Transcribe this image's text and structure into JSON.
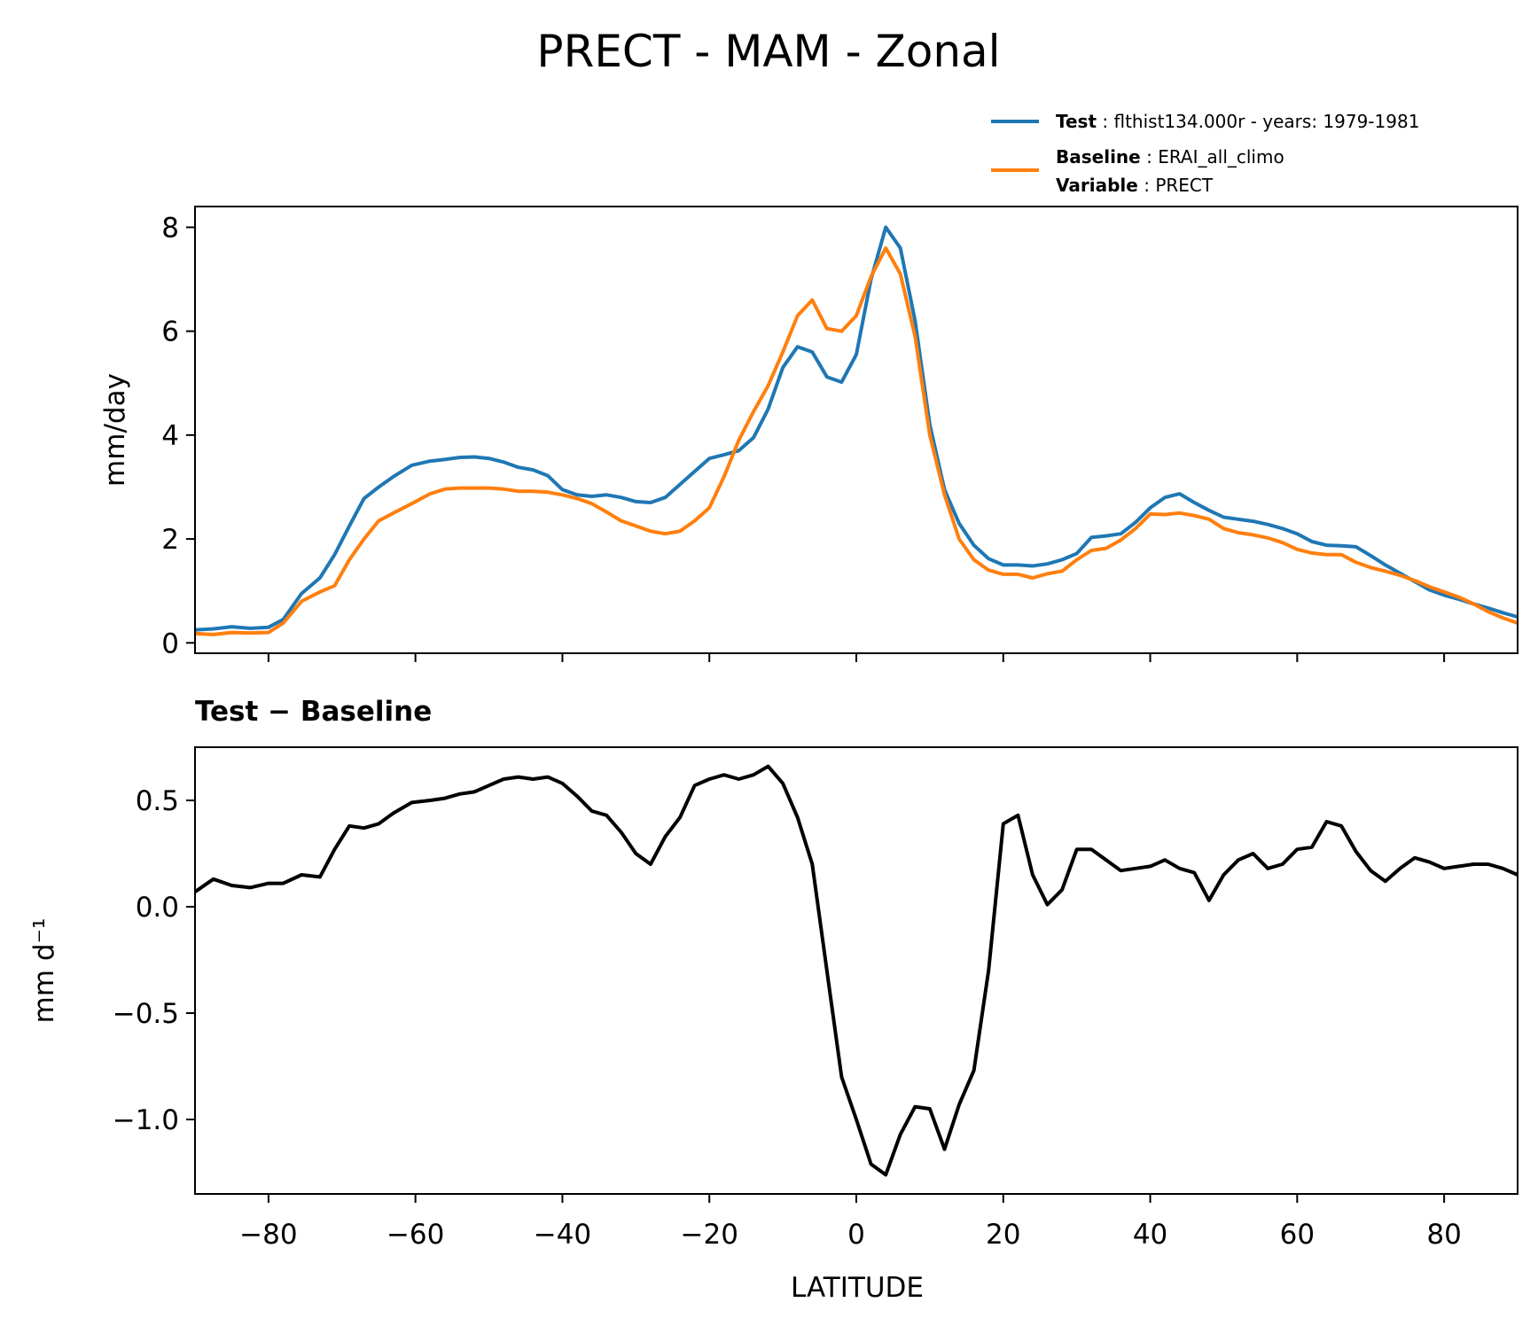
{
  "chart_data": {
    "title": "PRECT - MAM - Zonal",
    "legend": {
      "placement": "top-right",
      "entries": [
        {
          "key": "Test",
          "label": "flthist134.000r - years: 1979-1981",
          "color": "#1f77b4"
        },
        {
          "key": "Baseline",
          "label": "ERAI_all_climo",
          "color": "#ff7f0e",
          "extra_key": "Variable",
          "extra_label": "PRECT"
        }
      ]
    },
    "xlabel": "LATITUDE",
    "xlim": [
      -90,
      90
    ],
    "xticks": [
      -80,
      -60,
      -40,
      -20,
      0,
      20,
      40,
      60,
      80
    ],
    "xtick_labels": [
      "−80",
      "−60",
      "−40",
      "−20",
      "0",
      "20",
      "40",
      "60",
      "80"
    ],
    "x": [
      -90,
      -87.5,
      -85,
      -82.5,
      -80,
      -78,
      -75.5,
      -73,
      -71,
      -69,
      -67,
      -65,
      -63,
      -60.5,
      -58,
      -56,
      -54,
      -52,
      -50,
      -48,
      -46,
      -44,
      -42,
      -40,
      -38,
      -36,
      -34,
      -32,
      -30,
      -28,
      -26,
      -24,
      -22,
      -20,
      -18,
      -16,
      -14,
      -12,
      -10,
      -8,
      -6,
      -4,
      -2,
      0,
      2,
      4,
      6,
      8,
      10,
      12,
      14,
      16,
      18,
      20,
      22,
      24,
      26,
      28,
      30,
      32,
      34,
      36,
      38,
      40,
      42,
      44,
      46,
      48,
      50,
      52,
      54,
      56,
      58,
      60,
      62,
      64,
      66,
      68,
      70,
      72,
      74,
      76,
      78,
      80,
      82,
      84,
      86,
      88,
      90
    ],
    "panels": [
      {
        "type": "line",
        "ylabel": "mm/day",
        "ylim": [
          -0.2,
          8.4
        ],
        "yticks": [
          0,
          2,
          4,
          6,
          8
        ],
        "ytick_labels": [
          "0",
          "2",
          "4",
          "6",
          "8"
        ],
        "series": [
          {
            "name": "Test",
            "color": "#1f77b4",
            "values": [
              0.25,
              0.27,
              0.31,
              0.28,
              0.3,
              0.45,
              0.95,
              1.25,
              1.7,
              2.25,
              2.78,
              3.0,
              3.2,
              3.42,
              3.5,
              3.53,
              3.57,
              3.58,
              3.55,
              3.48,
              3.38,
              3.33,
              3.22,
              2.95,
              2.85,
              2.82,
              2.85,
              2.8,
              2.72,
              2.7,
              2.8,
              3.05,
              3.3,
              3.55,
              3.62,
              3.7,
              3.95,
              4.5,
              5.3,
              5.7,
              5.6,
              5.12,
              5.02,
              5.55,
              7.0,
              8.0,
              7.6,
              6.2,
              4.2,
              2.95,
              2.3,
              1.88,
              1.62,
              1.5,
              1.5,
              1.48,
              1.52,
              1.6,
              1.72,
              2.03,
              2.06,
              2.1,
              2.32,
              2.6,
              2.8,
              2.87,
              2.7,
              2.55,
              2.42,
              2.38,
              2.34,
              2.28,
              2.2,
              2.1,
              1.95,
              1.88,
              1.87,
              1.85,
              1.68,
              1.5,
              1.34,
              1.18,
              1.02,
              0.92,
              0.84,
              0.75,
              0.67,
              0.58,
              0.5
            ]
          },
          {
            "name": "Baseline",
            "color": "#ff7f0e",
            "values": [
              0.18,
              0.16,
              0.2,
              0.19,
              0.2,
              0.38,
              0.8,
              0.98,
              1.1,
              1.6,
              2.0,
              2.35,
              2.5,
              2.68,
              2.87,
              2.96,
              2.98,
              2.98,
              2.98,
              2.96,
              2.92,
              2.92,
              2.9,
              2.85,
              2.78,
              2.68,
              2.52,
              2.35,
              2.25,
              2.15,
              2.1,
              2.15,
              2.35,
              2.6,
              3.2,
              3.9,
              4.45,
              4.95,
              5.6,
              6.3,
              6.6,
              6.05,
              6.0,
              6.3,
              7.05,
              7.6,
              7.1,
              5.9,
              4.0,
              2.85,
              2.0,
              1.6,
              1.4,
              1.32,
              1.32,
              1.25,
              1.33,
              1.38,
              1.6,
              1.78,
              1.82,
              1.98,
              2.2,
              2.48,
              2.47,
              2.5,
              2.45,
              2.38,
              2.2,
              2.12,
              2.08,
              2.02,
              1.93,
              1.8,
              1.73,
              1.7,
              1.7,
              1.55,
              1.45,
              1.38,
              1.3,
              1.2,
              1.08,
              0.98,
              0.88,
              0.75,
              0.6,
              0.48,
              0.38
            ]
          }
        ]
      },
      {
        "type": "line",
        "subtitle": "Test − Baseline",
        "ylabel": "mm d⁻¹",
        "ylim": [
          -1.35,
          0.75
        ],
        "yticks": [
          0.5,
          0.0,
          -0.5,
          -1.0
        ],
        "ytick_labels": [
          "0.5",
          "0.0",
          "−0.5",
          "−1.0"
        ],
        "series": [
          {
            "name": "Test − Baseline",
            "color": "#000000",
            "values": [
              0.07,
              0.13,
              0.1,
              0.09,
              0.11,
              0.11,
              0.15,
              0.14,
              0.27,
              0.38,
              0.37,
              0.39,
              0.44,
              0.49,
              0.5,
              0.51,
              0.53,
              0.54,
              0.57,
              0.6,
              0.61,
              0.6,
              0.61,
              0.58,
              0.52,
              0.45,
              0.43,
              0.35,
              0.25,
              0.2,
              0.33,
              0.42,
              0.57,
              0.6,
              0.62,
              0.6,
              0.62,
              0.66,
              0.58,
              0.42,
              0.2,
              -0.3,
              -0.8,
              -1.0,
              -1.21,
              -1.26,
              -1.07,
              -0.94,
              -0.95,
              -1.14,
              -0.93,
              -0.77,
              -0.3,
              0.39,
              0.43,
              0.15,
              0.01,
              0.08,
              0.27,
              0.27,
              0.22,
              0.17,
              0.18,
              0.19,
              0.22,
              0.18,
              0.16,
              0.03,
              0.15,
              0.22,
              0.25,
              0.18,
              0.2,
              0.27,
              0.28,
              0.4,
              0.38,
              0.26,
              0.17,
              0.12,
              0.18,
              0.23,
              0.21,
              0.18,
              0.19,
              0.2,
              0.2,
              0.18,
              0.15
            ]
          }
        ]
      }
    ]
  }
}
